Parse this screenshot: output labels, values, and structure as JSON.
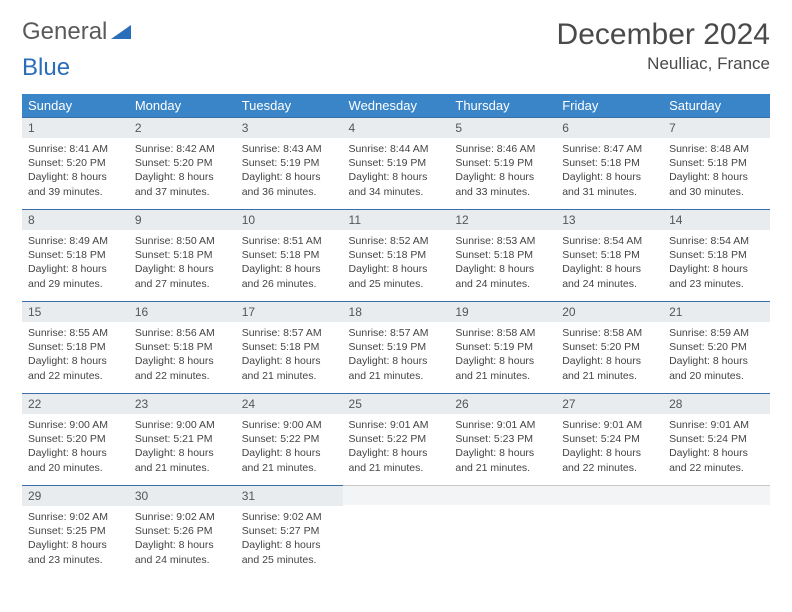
{
  "brand": {
    "word1": "General",
    "word2": "Blue"
  },
  "title": "December 2024",
  "location": "Neulliac, France",
  "colors": {
    "header_bg": "#3a85c8",
    "header_text": "#ffffff",
    "daynum_bg": "#e8ecef",
    "daynum_border": "#3a6ea5",
    "logo_gray": "#5a5a5a",
    "logo_blue": "#2a6db8"
  },
  "weekdays": [
    "Sunday",
    "Monday",
    "Tuesday",
    "Wednesday",
    "Thursday",
    "Friday",
    "Saturday"
  ],
  "days": [
    {
      "n": 1,
      "sunrise": "8:41 AM",
      "sunset": "5:20 PM",
      "daylight": "8 hours and 39 minutes."
    },
    {
      "n": 2,
      "sunrise": "8:42 AM",
      "sunset": "5:20 PM",
      "daylight": "8 hours and 37 minutes."
    },
    {
      "n": 3,
      "sunrise": "8:43 AM",
      "sunset": "5:19 PM",
      "daylight": "8 hours and 36 minutes."
    },
    {
      "n": 4,
      "sunrise": "8:44 AM",
      "sunset": "5:19 PM",
      "daylight": "8 hours and 34 minutes."
    },
    {
      "n": 5,
      "sunrise": "8:46 AM",
      "sunset": "5:19 PM",
      "daylight": "8 hours and 33 minutes."
    },
    {
      "n": 6,
      "sunrise": "8:47 AM",
      "sunset": "5:18 PM",
      "daylight": "8 hours and 31 minutes."
    },
    {
      "n": 7,
      "sunrise": "8:48 AM",
      "sunset": "5:18 PM",
      "daylight": "8 hours and 30 minutes."
    },
    {
      "n": 8,
      "sunrise": "8:49 AM",
      "sunset": "5:18 PM",
      "daylight": "8 hours and 29 minutes."
    },
    {
      "n": 9,
      "sunrise": "8:50 AM",
      "sunset": "5:18 PM",
      "daylight": "8 hours and 27 minutes."
    },
    {
      "n": 10,
      "sunrise": "8:51 AM",
      "sunset": "5:18 PM",
      "daylight": "8 hours and 26 minutes."
    },
    {
      "n": 11,
      "sunrise": "8:52 AM",
      "sunset": "5:18 PM",
      "daylight": "8 hours and 25 minutes."
    },
    {
      "n": 12,
      "sunrise": "8:53 AM",
      "sunset": "5:18 PM",
      "daylight": "8 hours and 24 minutes."
    },
    {
      "n": 13,
      "sunrise": "8:54 AM",
      "sunset": "5:18 PM",
      "daylight": "8 hours and 24 minutes."
    },
    {
      "n": 14,
      "sunrise": "8:54 AM",
      "sunset": "5:18 PM",
      "daylight": "8 hours and 23 minutes."
    },
    {
      "n": 15,
      "sunrise": "8:55 AM",
      "sunset": "5:18 PM",
      "daylight": "8 hours and 22 minutes."
    },
    {
      "n": 16,
      "sunrise": "8:56 AM",
      "sunset": "5:18 PM",
      "daylight": "8 hours and 22 minutes."
    },
    {
      "n": 17,
      "sunrise": "8:57 AM",
      "sunset": "5:18 PM",
      "daylight": "8 hours and 21 minutes."
    },
    {
      "n": 18,
      "sunrise": "8:57 AM",
      "sunset": "5:19 PM",
      "daylight": "8 hours and 21 minutes."
    },
    {
      "n": 19,
      "sunrise": "8:58 AM",
      "sunset": "5:19 PM",
      "daylight": "8 hours and 21 minutes."
    },
    {
      "n": 20,
      "sunrise": "8:58 AM",
      "sunset": "5:20 PM",
      "daylight": "8 hours and 21 minutes."
    },
    {
      "n": 21,
      "sunrise": "8:59 AM",
      "sunset": "5:20 PM",
      "daylight": "8 hours and 20 minutes."
    },
    {
      "n": 22,
      "sunrise": "9:00 AM",
      "sunset": "5:20 PM",
      "daylight": "8 hours and 20 minutes."
    },
    {
      "n": 23,
      "sunrise": "9:00 AM",
      "sunset": "5:21 PM",
      "daylight": "8 hours and 21 minutes."
    },
    {
      "n": 24,
      "sunrise": "9:00 AM",
      "sunset": "5:22 PM",
      "daylight": "8 hours and 21 minutes."
    },
    {
      "n": 25,
      "sunrise": "9:01 AM",
      "sunset": "5:22 PM",
      "daylight": "8 hours and 21 minutes."
    },
    {
      "n": 26,
      "sunrise": "9:01 AM",
      "sunset": "5:23 PM",
      "daylight": "8 hours and 21 minutes."
    },
    {
      "n": 27,
      "sunrise": "9:01 AM",
      "sunset": "5:24 PM",
      "daylight": "8 hours and 22 minutes."
    },
    {
      "n": 28,
      "sunrise": "9:01 AM",
      "sunset": "5:24 PM",
      "daylight": "8 hours and 22 minutes."
    },
    {
      "n": 29,
      "sunrise": "9:02 AM",
      "sunset": "5:25 PM",
      "daylight": "8 hours and 23 minutes."
    },
    {
      "n": 30,
      "sunrise": "9:02 AM",
      "sunset": "5:26 PM",
      "daylight": "8 hours and 24 minutes."
    },
    {
      "n": 31,
      "sunrise": "9:02 AM",
      "sunset": "5:27 PM",
      "daylight": "8 hours and 25 minutes."
    }
  ],
  "labels": {
    "sunrise": "Sunrise:",
    "sunset": "Sunset:",
    "daylight": "Daylight:"
  },
  "grid": {
    "first_day_col": 0,
    "total_cells": 35
  }
}
